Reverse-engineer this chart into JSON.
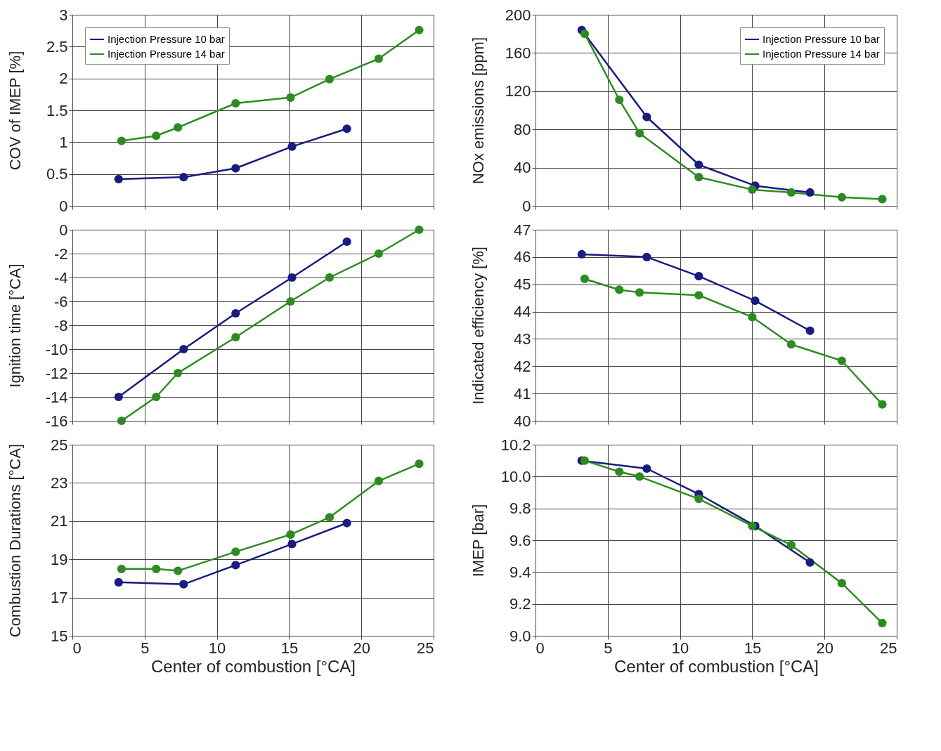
{
  "chart_data": [
    {
      "type": "line",
      "ylabel": "COV of IMEP [%]",
      "xlim": [
        0,
        25
      ],
      "xticks": [
        0,
        5,
        10,
        15,
        20,
        25
      ],
      "ylim": [
        0,
        3
      ],
      "yticks": [
        0,
        0.5,
        1,
        1.5,
        2,
        2.5,
        3
      ],
      "grid": true,
      "legend": "top left",
      "marker": "circle",
      "tick_labels": "y",
      "series": [
        {
          "name": "Injection Pressure 10 bar",
          "color": "#1a1a80",
          "x": [
            3.2,
            7.7,
            11.3,
            15.2,
            19.0
          ],
          "values": [
            0.42,
            0.45,
            0.59,
            0.93,
            1.21
          ]
        },
        {
          "name": "Injection Pressure 14 bar",
          "color": "#2e8b22",
          "x": [
            3.4,
            5.8,
            7.3,
            11.3,
            15.1,
            17.8,
            21.2,
            24.0
          ],
          "values": [
            1.02,
            1.1,
            1.23,
            1.61,
            1.7,
            1.99,
            2.31,
            2.76
          ]
        }
      ]
    },
    {
      "type": "line",
      "ylabel": "NOx emissions [ppm]",
      "xlim": [
        0,
        25
      ],
      "xticks": [
        0,
        5,
        10,
        15,
        20,
        25
      ],
      "ylim": [
        0,
        200
      ],
      "yticks": [
        0,
        40,
        80,
        120,
        160,
        200
      ],
      "grid": true,
      "legend": "top right",
      "marker": "circle",
      "tick_labels": "y",
      "series": [
        {
          "name": "Injection Pressure 10 bar",
          "color": "#1a1a80",
          "x": [
            3.2,
            7.7,
            11.3,
            15.2,
            19.0
          ],
          "values": [
            184,
            93,
            43,
            21,
            14
          ]
        },
        {
          "name": "Injection Pressure 14 bar",
          "color": "#2e8b22",
          "x": [
            3.4,
            5.8,
            7.2,
            11.3,
            15.0,
            17.7,
            21.2,
            24.0
          ],
          "values": [
            180,
            111,
            76,
            30,
            17,
            14,
            9,
            7
          ]
        }
      ]
    },
    {
      "type": "line",
      "ylabel": "Ignition time [°CA]",
      "xlim": [
        0,
        25
      ],
      "xticks": [
        0,
        5,
        10,
        15,
        20,
        25
      ],
      "ylim": [
        -16,
        0
      ],
      "yticks": [
        -16,
        -14,
        -12,
        -10,
        -8,
        -6,
        -4,
        -2,
        0
      ],
      "grid": true,
      "marker": "circle",
      "tick_labels": "y",
      "series": [
        {
          "color": "#1a1a80",
          "x": [
            3.2,
            7.7,
            11.3,
            15.2,
            19.0
          ],
          "values": [
            -14,
            -10,
            -7,
            -4,
            -1
          ]
        },
        {
          "color": "#2e8b22",
          "x": [
            3.4,
            5.8,
            7.3,
            11.3,
            15.1,
            17.8,
            21.2,
            24.0
          ],
          "values": [
            -16,
            -14,
            -12,
            -9,
            -6,
            -4,
            -2,
            0
          ]
        }
      ]
    },
    {
      "type": "line",
      "ylabel": "Indicated efficiency [%]",
      "xlim": [
        0,
        25
      ],
      "xticks": [
        0,
        5,
        10,
        15,
        20,
        25
      ],
      "ylim": [
        40,
        47
      ],
      "yticks": [
        40,
        41,
        42,
        43,
        44,
        45,
        46,
        47
      ],
      "grid": true,
      "marker": "circle",
      "tick_labels": "y",
      "series": [
        {
          "color": "#1a1a80",
          "x": [
            3.2,
            7.7,
            11.3,
            15.2,
            19.0
          ],
          "values": [
            46.1,
            46.0,
            45.3,
            44.4,
            43.3
          ]
        },
        {
          "color": "#2e8b22",
          "x": [
            3.4,
            5.8,
            7.2,
            11.3,
            15.0,
            17.7,
            21.2,
            24.0
          ],
          "values": [
            45.2,
            44.8,
            44.7,
            44.6,
            43.8,
            42.8,
            42.2,
            40.6
          ]
        }
      ]
    },
    {
      "type": "line",
      "xlabel": "Center of combustion [°CA]",
      "ylabel": "Combustion Durations [°CA]",
      "xlim": [
        0,
        25
      ],
      "xticks": [
        0,
        5,
        10,
        15,
        20,
        25
      ],
      "ylim": [
        15,
        25
      ],
      "yticks": [
        15,
        17,
        19,
        21,
        23,
        25
      ],
      "grid": true,
      "marker": "circle",
      "series": [
        {
          "color": "#1a1a80",
          "x": [
            3.2,
            7.7,
            11.3,
            15.2,
            19.0
          ],
          "values": [
            17.8,
            17.7,
            18.7,
            19.8,
            20.9
          ]
        },
        {
          "color": "#2e8b22",
          "x": [
            3.4,
            5.8,
            7.3,
            11.3,
            15.1,
            17.8,
            21.2,
            24.0
          ],
          "values": [
            18.5,
            18.5,
            18.4,
            19.4,
            20.3,
            21.2,
            23.1,
            24.0
          ]
        }
      ]
    },
    {
      "type": "line",
      "xlabel": "Center of combustion [°CA]",
      "ylabel": "IMEP [bar]",
      "xlim": [
        0,
        25
      ],
      "xticks": [
        0,
        5,
        10,
        15,
        20,
        25
      ],
      "ylim": [
        9,
        10.2
      ],
      "yticks": [
        {
          "value": 9,
          "label": "9.0"
        },
        {
          "value": 9.2,
          "label": "9.2"
        },
        {
          "value": 9.4,
          "label": "9.4"
        },
        {
          "value": 9.6,
          "label": "9.6"
        },
        {
          "value": 9.8,
          "label": "9.8"
        },
        {
          "value": 10,
          "label": "10.0"
        },
        {
          "value": 10.2,
          "label": "10.2"
        }
      ],
      "grid": true,
      "marker": "circle",
      "series": [
        {
          "color": "#1a1a80",
          "x": [
            3.2,
            7.7,
            11.3,
            15.2,
            19.0
          ],
          "values": [
            10.1,
            10.05,
            9.89,
            9.69,
            9.46
          ]
        },
        {
          "color": "#2e8b22",
          "x": [
            3.4,
            5.8,
            7.2,
            11.3,
            15.0,
            17.7,
            21.2,
            24.0
          ],
          "values": [
            10.1,
            10.03,
            10.0,
            9.86,
            9.69,
            9.57,
            9.33,
            9.08
          ]
        }
      ]
    }
  ]
}
